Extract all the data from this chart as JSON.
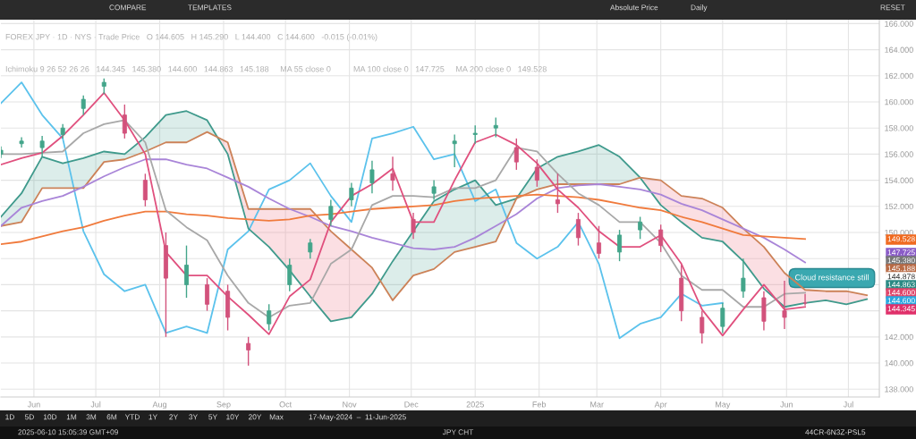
{
  "chart_data": {
    "type": "candlestick",
    "title": "FOREX JPY · 1D · NYS · Trade Price   O 144.605   H 145.290   L 144.400   C 144.600   -0.015 (-0.01%)",
    "subtitle": "Ichimoku 9 26 52 26 26   144.345   145.380   144.600   144.863   145.188     MA 55 close 0          MA 100 close 0   147.725     MA 200 close 0   149.528",
    "x": [
      "2024-05-16",
      "2024-05-26",
      "2024-06-05",
      "2024-06-15",
      "2024-06-25",
      "2024-07-05",
      "2024-07-15",
      "2024-07-25",
      "2024-08-04",
      "2024-08-14",
      "2024-08-24",
      "2024-09-03",
      "2024-09-13",
      "2024-09-23",
      "2024-10-03",
      "2024-10-13",
      "2024-10-23",
      "2024-11-02",
      "2024-11-12",
      "2024-11-22",
      "2024-12-02",
      "2024-12-12",
      "2024-12-22",
      "2025-01-01",
      "2025-01-11",
      "2025-01-21",
      "2025-01-31",
      "2025-02-10",
      "2025-02-20",
      "2025-03-02",
      "2025-03-12",
      "2025-03-22",
      "2025-04-01",
      "2025-04-11",
      "2025-04-21",
      "2025-05-01",
      "2025-05-11",
      "2025-05-21",
      "2025-05-31",
      "2025-06-10",
      "2025-06-20",
      "2025-06-30",
      "2025-07-10"
    ],
    "ohlc": [
      [
        156.0,
        156.6,
        155.7,
        156.3
      ],
      [
        156.8,
        157.3,
        156.5,
        157.0
      ],
      [
        156.5,
        157.4,
        155.8,
        157.0
      ],
      [
        157.5,
        158.3,
        157.2,
        158.0
      ],
      [
        159.5,
        160.5,
        159.0,
        160.2
      ],
      [
        161.2,
        161.8,
        160.6,
        161.5
      ],
      [
        159.0,
        159.8,
        157.2,
        157.6
      ],
      [
        154.0,
        154.5,
        152.0,
        152.5
      ],
      [
        149.0,
        150.0,
        142.0,
        146.5
      ],
      [
        146.0,
        149.0,
        145.0,
        147.5
      ],
      [
        146.0,
        146.5,
        144.0,
        144.5
      ],
      [
        145.5,
        146.0,
        142.5,
        143.5
      ],
      [
        141.5,
        142.0,
        139.8,
        141.0
      ],
      [
        143.0,
        144.5,
        142.5,
        144.0
      ],
      [
        146.0,
        148.0,
        145.5,
        147.5
      ],
      [
        148.5,
        149.5,
        148.0,
        149.2
      ],
      [
        151.0,
        152.5,
        150.5,
        152.0
      ],
      [
        152.5,
        153.8,
        152.0,
        153.4
      ],
      [
        153.8,
        155.5,
        153.0,
        154.8
      ],
      [
        154.5,
        155.8,
        153.2,
        154.0
      ],
      [
        151.0,
        151.5,
        149.5,
        150.0
      ],
      [
        153.0,
        154.0,
        152.5,
        153.5
      ],
      [
        156.8,
        157.5,
        155.0,
        157.0
      ],
      [
        157.5,
        158.2,
        156.8,
        157.6
      ],
      [
        158.0,
        158.8,
        157.3,
        158.2
      ],
      [
        156.5,
        157.2,
        154.8,
        155.4
      ],
      [
        155.0,
        155.6,
        153.5,
        154.0
      ],
      [
        152.5,
        154.5,
        151.5,
        152.2
      ],
      [
        151.0,
        151.5,
        149.0,
        149.6
      ],
      [
        149.2,
        150.5,
        148.0,
        148.4
      ],
      [
        148.5,
        150.2,
        147.8,
        149.8
      ],
      [
        150.2,
        151.2,
        149.5,
        150.8
      ],
      [
        150.2,
        150.6,
        148.5,
        149.0
      ],
      [
        146.5,
        147.5,
        143.2,
        144.0
      ],
      [
        143.5,
        144.0,
        141.5,
        142.3
      ],
      [
        142.8,
        144.6,
        142.3,
        144.2
      ],
      [
        145.5,
        148.0,
        145.0,
        146.5
      ],
      [
        145.0,
        145.5,
        142.5,
        143.2
      ],
      [
        144.0,
        146.3,
        142.6,
        143.5
      ],
      [
        144.605,
        145.29,
        144.4,
        144.6
      ],
      null,
      null,
      null
    ],
    "series": [
      {
        "type": "line",
        "color": "#5bc2ec",
        "values": [
          159.9,
          161.5,
          159.0,
          157.2,
          150.1,
          146.8,
          145.5,
          146.0,
          142.3,
          142.8,
          142.3,
          148.7,
          150.1,
          153.3,
          154.0,
          155.3,
          152.8,
          150.8,
          157.2,
          157.6,
          158.1,
          155.6,
          156.0,
          152.4,
          153.3,
          149.2,
          148.0,
          148.9,
          150.8,
          147.6,
          141.9,
          143.0,
          143.5,
          145.3,
          144.4,
          144.6,
          null,
          null,
          null,
          null,
          null,
          null,
          null
        ]
      },
      {
        "type": "line",
        "color": "#3f9a8c",
        "values": [
          151.2,
          153.0,
          155.8,
          155.3,
          155.7,
          156.2,
          156.0,
          157.3,
          159.0,
          159.3,
          158.6,
          156.0,
          150.3,
          148.9,
          147.1,
          145.1,
          143.2,
          143.5,
          145.3,
          147.8,
          150.1,
          152.4,
          153.3,
          154.0,
          152.1,
          152.6,
          154.9,
          155.8,
          156.2,
          156.7,
          155.8,
          154.2,
          152.1,
          150.8,
          149.6,
          149.3,
          147.8,
          145.7,
          144.3,
          144.6,
          144.8,
          144.5,
          144.9
        ]
      },
      {
        "type": "line",
        "color": "#cc8258",
        "values": [
          150.5,
          150.8,
          153.4,
          153.4,
          153.4,
          155.4,
          155.6,
          156.2,
          156.9,
          156.9,
          157.7,
          156.9,
          151.8,
          151.8,
          151.8,
          151.8,
          150.1,
          148.7,
          147.3,
          144.8,
          146.7,
          147.2,
          148.5,
          148.9,
          149.3,
          152.6,
          153.3,
          153.7,
          153.7,
          153.7,
          153.7,
          154.2,
          154.0,
          152.8,
          152.6,
          151.9,
          150.3,
          148.9,
          146.9,
          145.6,
          145.5,
          145.5,
          145.2
        ]
      },
      {
        "type": "line",
        "color": "#a985d8",
        "values": [
          150.5,
          151.9,
          152.4,
          152.8,
          153.5,
          154.3,
          155.0,
          155.6,
          155.6,
          155.2,
          154.9,
          154.2,
          153.5,
          152.6,
          151.8,
          151.2,
          150.5,
          150.1,
          149.6,
          149.2,
          148.8,
          148.7,
          148.9,
          149.6,
          150.5,
          151.4,
          152.6,
          153.4,
          153.6,
          153.7,
          153.5,
          153.3,
          152.9,
          152.2,
          151.7,
          151.0,
          150.3,
          149.6,
          148.7,
          147.7,
          null,
          null,
          null
        ]
      },
      {
        "type": "line",
        "color": "#f07a3c",
        "values": [
          149.1,
          149.3,
          149.7,
          150.1,
          150.4,
          150.9,
          151.3,
          151.6,
          151.6,
          151.4,
          151.3,
          151.1,
          151.0,
          150.9,
          151.0,
          151.3,
          151.4,
          151.6,
          151.8,
          151.9,
          152.0,
          152.1,
          152.4,
          152.6,
          152.7,
          152.8,
          152.9,
          152.8,
          152.7,
          152.5,
          152.2,
          151.9,
          151.7,
          151.2,
          150.8,
          150.3,
          149.8,
          149.7,
          149.6,
          149.5,
          null,
          null,
          null
        ]
      },
      {
        "type": "line",
        "color": "#a8a8a8",
        "values": [
          156.0,
          156.0,
          156.1,
          156.2,
          157.6,
          158.3,
          158.6,
          156.9,
          151.7,
          150.4,
          149.4,
          146.7,
          144.6,
          143.5,
          144.4,
          144.6,
          147.6,
          148.7,
          152.1,
          152.8,
          152.8,
          152.7,
          153.4,
          153.4,
          154.0,
          156.5,
          156.2,
          154.5,
          153.0,
          152.1,
          150.8,
          150.8,
          149.2,
          146.7,
          145.6,
          145.6,
          144.3,
          144.3,
          145.3,
          145.38,
          null,
          null,
          null
        ]
      },
      {
        "type": "line",
        "color": "#e0507e",
        "values": [
          155.2,
          155.7,
          156.1,
          157.4,
          159.0,
          160.7,
          158.6,
          156.0,
          148.5,
          146.7,
          146.7,
          145.1,
          143.7,
          142.2,
          145.1,
          146.4,
          150.8,
          152.8,
          153.7,
          154.9,
          150.8,
          150.8,
          154.0,
          156.9,
          157.5,
          156.7,
          155.3,
          153.3,
          151.9,
          150.1,
          148.9,
          148.9,
          149.8,
          147.6,
          144.1,
          142.1,
          144.1,
          146.0,
          144.1,
          144.3,
          null,
          null,
          null
        ]
      }
    ],
    "xlim": [
      "2024-05-16",
      "2025-07-16"
    ],
    "xticks": [
      {
        "value": "2024-06-01",
        "label": "Jun"
      },
      {
        "value": "2024-07-01",
        "label": "Jul"
      },
      {
        "value": "2024-08-01",
        "label": "Aug"
      },
      {
        "value": "2024-09-01",
        "label": "Sep"
      },
      {
        "value": "2024-10-01",
        "label": "Oct"
      },
      {
        "value": "2024-11-01",
        "label": "Nov"
      },
      {
        "value": "2024-12-01",
        "label": "Dec"
      },
      {
        "value": "2025-01-01",
        "label": "2025"
      },
      {
        "value": "2025-02-01",
        "label": "Feb"
      },
      {
        "value": "2025-03-01",
        "label": "Mar"
      },
      {
        "value": "2025-04-01",
        "label": "Apr"
      },
      {
        "value": "2025-05-01",
        "label": "May"
      },
      {
        "value": "2025-06-01",
        "label": "Jun"
      },
      {
        "value": "2025-07-01",
        "label": "Jul"
      }
    ],
    "ylim": [
      137.4,
      166.3
    ],
    "yticks": [
      {
        "value": 138,
        "label": "138.000"
      },
      {
        "value": 140,
        "label": "140.000"
      },
      {
        "value": 142,
        "label": "142.000"
      },
      {
        "value": 144,
        "label": null
      },
      {
        "value": 146,
        "label": null
      },
      {
        "value": 148,
        "label": null
      },
      {
        "value": 150,
        "label": "150.000"
      },
      {
        "value": 152,
        "label": "152.000"
      },
      {
        "value": 154,
        "label": "154.000"
      },
      {
        "value": 156,
        "label": "156.000"
      },
      {
        "value": 158,
        "label": "158.000"
      },
      {
        "value": 160,
        "label": "160.000"
      },
      {
        "value": 162,
        "label": "162.000"
      },
      {
        "value": 164,
        "label": "164.000"
      },
      {
        "value": 166,
        "label": "166.000"
      }
    ],
    "grid": true,
    "annotations": [
      "Cloud resistance still",
      "149.528",
      "147.725",
      "145.380",
      "145.188",
      "144.878",
      "144.863",
      "144.600",
      "144.600",
      "144.345",
      "COMPARE",
      "TEMPLATES",
      "Absolute Price",
      "Daily",
      "RESET",
      "1D",
      "5D",
      "10D",
      "1M",
      "3M",
      "6M",
      "YTD",
      "1Y",
      "2Y",
      "3Y",
      "5Y",
      "10Y",
      "20Y",
      "Max",
      "17-May-2024  –  11-Jun-2025",
      "2025-06-10 15:05:39 GMT+09",
      "JPY CHT",
      "44CR-6N3Z-PSL5"
    ]
  }
}
